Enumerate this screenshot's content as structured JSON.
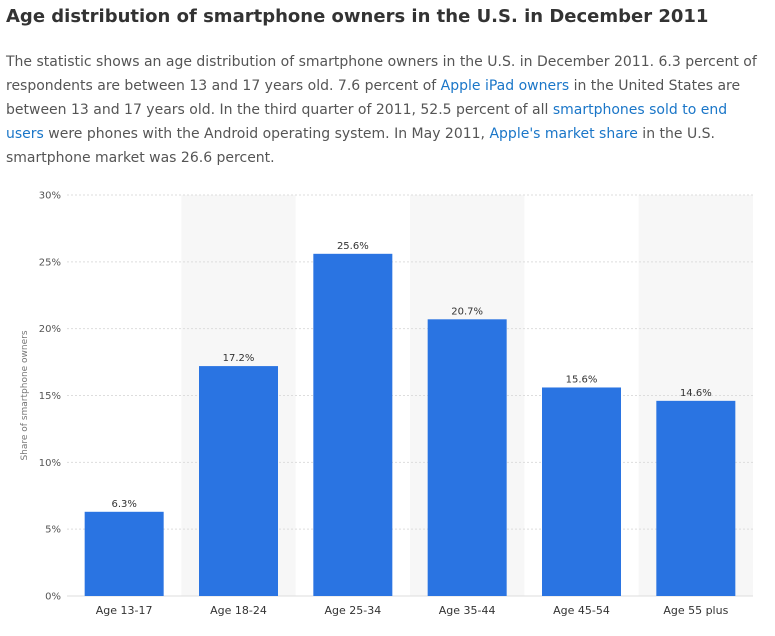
{
  "page": {
    "title": "Age distribution of smartphone owners in the U.S. in December 2011",
    "description": {
      "p1": "The statistic shows an age distribution of smartphone owners in the U.S. in December 2011. 6.3 percent of respondents are between 13 and 17 years old. 7.6 percent of ",
      "link1": "Apple iPad owners",
      "p2": " in the United States are between 13 and 17 years old. In the third quarter of 2011, 52.5 percent of all ",
      "link2": "smartphones sold to end users",
      "p3": " were phones with the Android operating system. In May 2011, ",
      "link3": "Apple's market share",
      "p4": " in the U.S. smartphone market was 26.6 percent."
    },
    "colors": {
      "bar": "#2a74e2",
      "band": "#f7f7f7",
      "grid": "#dddddd",
      "link": "#1a76c8"
    }
  },
  "chart_data": {
    "type": "bar",
    "categories": [
      "Age 13-17",
      "Age 18-24",
      "Age 25-34",
      "Age 35-44",
      "Age 45-54",
      "Age 55 plus"
    ],
    "values": [
      6.3,
      17.2,
      25.6,
      20.7,
      15.6,
      14.6
    ],
    "value_labels": [
      "6.3%",
      "17.2%",
      "25.6%",
      "20.7%",
      "15.6%",
      "14.6%"
    ],
    "ylabel": "Share of smartphone owners",
    "ylim": [
      0,
      30
    ],
    "yticks": [
      0,
      5,
      10,
      15,
      20,
      25,
      30
    ],
    "ytick_labels": [
      "0%",
      "5%",
      "10%",
      "15%",
      "20%",
      "25%",
      "30%"
    ],
    "grid": true
  }
}
